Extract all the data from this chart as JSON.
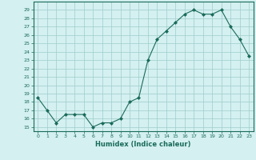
{
  "x": [
    0,
    1,
    2,
    3,
    4,
    5,
    6,
    7,
    8,
    9,
    10,
    11,
    12,
    13,
    14,
    15,
    16,
    17,
    18,
    19,
    20,
    21,
    22,
    23
  ],
  "y": [
    18.5,
    17.0,
    15.5,
    16.5,
    16.5,
    16.5,
    15.0,
    15.5,
    15.5,
    16.0,
    18.0,
    18.5,
    23.0,
    25.5,
    26.5,
    27.5,
    28.5,
    29.0,
    28.5,
    28.5,
    29.0,
    27.0,
    25.5,
    23.5
  ],
  "xlabel": "Humidex (Indice chaleur)",
  "ylim": [
    14.5,
    30.0
  ],
  "xlim": [
    -0.5,
    23.5
  ],
  "yticks": [
    15,
    16,
    17,
    18,
    19,
    20,
    21,
    22,
    23,
    24,
    25,
    26,
    27,
    28,
    29
  ],
  "xticks": [
    0,
    1,
    2,
    3,
    4,
    5,
    6,
    7,
    8,
    9,
    10,
    11,
    12,
    13,
    14,
    15,
    16,
    17,
    18,
    19,
    20,
    21,
    22,
    23
  ],
  "line_color": "#1a6b5a",
  "marker_color": "#1a6b5a",
  "bg_color": "#d4f0f0",
  "grid_color": "#a0cccc",
  "axis_color": "#1a6b5a",
  "tick_color": "#1a6b5a",
  "xlabel_color": "#1a6b5a"
}
